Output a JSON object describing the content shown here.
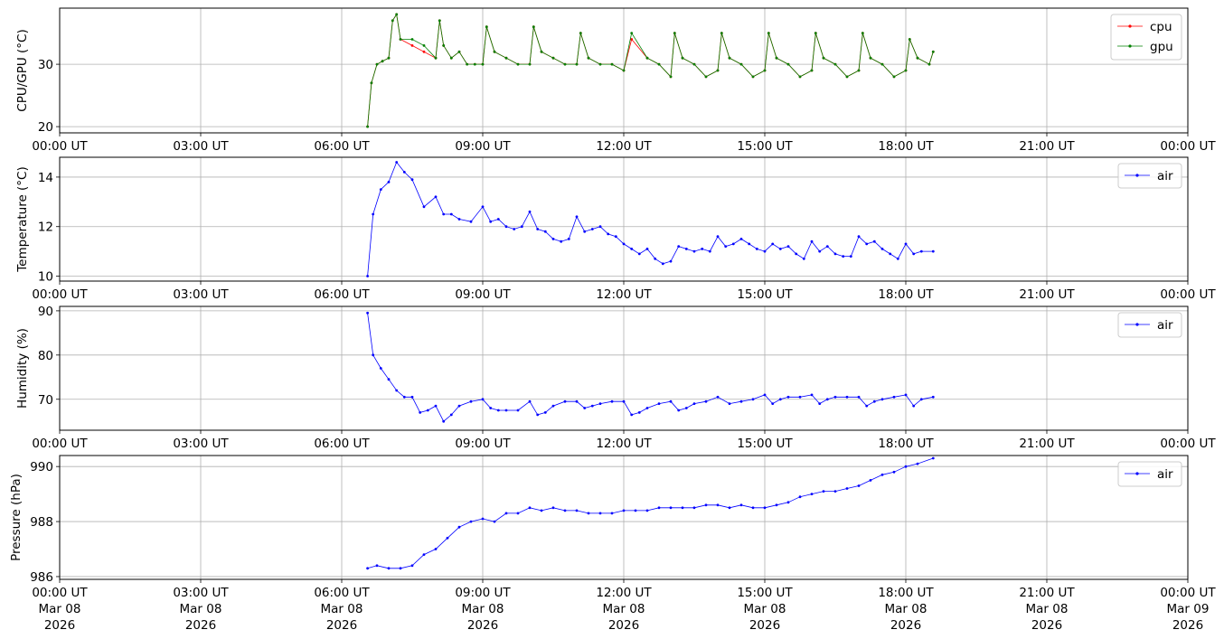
{
  "x_ticks": [
    {
      "time": "00:00 UT",
      "day": "Mar 08",
      "year": "2026"
    },
    {
      "time": "03:00 UT",
      "day": "Mar 08",
      "year": "2026"
    },
    {
      "time": "06:00 UT",
      "day": "Mar 08",
      "year": "2026"
    },
    {
      "time": "09:00 UT",
      "day": "Mar 08",
      "year": "2026"
    },
    {
      "time": "12:00 UT",
      "day": "Mar 08",
      "year": "2026"
    },
    {
      "time": "15:00 UT",
      "day": "Mar 08",
      "year": "2026"
    },
    {
      "time": "18:00 UT",
      "day": "Mar 08",
      "year": "2026"
    },
    {
      "time": "21:00 UT",
      "day": "Mar 08",
      "year": "2026"
    },
    {
      "time": "00:00 UT",
      "day": "Mar 09",
      "year": "2026"
    }
  ],
  "chart_data": [
    {
      "type": "line",
      "ylabel": "CPU/GPU (°C)",
      "xlim": [
        "2026-03-08T00:00Z",
        "2026-03-09T00:00Z"
      ],
      "ylim": [
        19,
        39
      ],
      "yticks": [
        20,
        30
      ],
      "grid": true,
      "legend": "top-right",
      "series": [
        {
          "name": "cpu",
          "color": "#ff0000",
          "x": [
            "06:33",
            "06:38",
            "06:45",
            "06:52",
            "07:00",
            "07:05",
            "07:10",
            "07:15",
            "07:30",
            "07:45",
            "08:00",
            "08:05",
            "08:10",
            "08:20",
            "08:30",
            "08:40",
            "08:50",
            "09:00",
            "09:05",
            "09:15",
            "09:30",
            "09:45",
            "10:00",
            "10:05",
            "10:15",
            "10:30",
            "10:45",
            "11:00",
            "11:05",
            "11:15",
            "11:30",
            "11:45",
            "12:00",
            "12:10",
            "12:30",
            "12:45",
            "13:00",
            "13:05",
            "13:15",
            "13:30",
            "13:45",
            "14:00",
            "14:05",
            "14:15",
            "14:30",
            "14:45",
            "15:00",
            "15:05",
            "15:15",
            "15:30",
            "15:45",
            "16:00",
            "16:05",
            "16:15",
            "16:30",
            "16:45",
            "17:00",
            "17:05",
            "17:15",
            "17:30",
            "17:45",
            "18:00",
            "18:05",
            "18:15",
            "18:30",
            "18:35"
          ],
          "values": [
            20,
            27,
            30,
            30.5,
            31,
            37,
            38,
            34,
            33,
            32,
            31,
            37,
            33,
            31,
            32,
            30,
            30,
            30,
            36,
            32,
            31,
            30,
            30,
            36,
            32,
            31,
            30,
            30,
            35,
            31,
            30,
            30,
            29,
            34,
            31,
            30,
            28,
            35,
            31,
            30,
            28,
            29,
            35,
            31,
            30,
            28,
            29,
            35,
            31,
            30,
            28,
            29,
            35,
            31,
            30,
            28,
            29,
            35,
            31,
            30,
            28,
            29,
            34,
            31,
            30,
            32
          ]
        },
        {
          "name": "gpu",
          "color": "#008000",
          "x": [
            "06:33",
            "06:38",
            "06:45",
            "06:52",
            "07:00",
            "07:05",
            "07:10",
            "07:15",
            "07:30",
            "07:45",
            "08:00",
            "08:05",
            "08:10",
            "08:20",
            "08:30",
            "08:40",
            "08:50",
            "09:00",
            "09:05",
            "09:15",
            "09:30",
            "09:45",
            "10:00",
            "10:05",
            "10:15",
            "10:30",
            "10:45",
            "11:00",
            "11:05",
            "11:15",
            "11:30",
            "11:45",
            "12:00",
            "12:10",
            "12:30",
            "12:45",
            "13:00",
            "13:05",
            "13:15",
            "13:30",
            "13:45",
            "14:00",
            "14:05",
            "14:15",
            "14:30",
            "14:45",
            "15:00",
            "15:05",
            "15:15",
            "15:30",
            "15:45",
            "16:00",
            "16:05",
            "16:15",
            "16:30",
            "16:45",
            "17:00",
            "17:05",
            "17:15",
            "17:30",
            "17:45",
            "18:00",
            "18:05",
            "18:15",
            "18:30",
            "18:35"
          ],
          "values": [
            20,
            27,
            30,
            30.5,
            31,
            37,
            38,
            34,
            34,
            33,
            31,
            37,
            33,
            31,
            32,
            30,
            30,
            30,
            36,
            32,
            31,
            30,
            30,
            36,
            32,
            31,
            30,
            30,
            35,
            31,
            30,
            30,
            29,
            35,
            31,
            30,
            28,
            35,
            31,
            30,
            28,
            29,
            35,
            31,
            30,
            28,
            29,
            35,
            31,
            30,
            28,
            29,
            35,
            31,
            30,
            28,
            29,
            35,
            31,
            30,
            28,
            29,
            34,
            31,
            30,
            32
          ]
        }
      ]
    },
    {
      "type": "line",
      "ylabel": "Temperature (°C)",
      "xlim": [
        "2026-03-08T00:00Z",
        "2026-03-09T00:00Z"
      ],
      "ylim": [
        9.8,
        14.8
      ],
      "yticks": [
        10,
        12,
        14
      ],
      "grid": true,
      "legend": "top-right",
      "series": [
        {
          "name": "air",
          "color": "#0000ff",
          "x": [
            "06:33",
            "06:40",
            "06:50",
            "07:00",
            "07:10",
            "07:20",
            "07:30",
            "07:45",
            "08:00",
            "08:10",
            "08:20",
            "08:30",
            "08:45",
            "09:00",
            "09:10",
            "09:20",
            "09:30",
            "09:40",
            "09:50",
            "10:00",
            "10:10",
            "10:20",
            "10:30",
            "10:40",
            "10:50",
            "11:00",
            "11:10",
            "11:20",
            "11:30",
            "11:40",
            "11:50",
            "12:00",
            "12:10",
            "12:20",
            "12:30",
            "12:40",
            "12:50",
            "13:00",
            "13:10",
            "13:20",
            "13:30",
            "13:40",
            "13:50",
            "14:00",
            "14:10",
            "14:20",
            "14:30",
            "14:40",
            "14:50",
            "15:00",
            "15:10",
            "15:20",
            "15:30",
            "15:40",
            "15:50",
            "16:00",
            "16:10",
            "16:20",
            "16:30",
            "16:40",
            "16:50",
            "17:00",
            "17:10",
            "17:20",
            "17:30",
            "17:40",
            "17:50",
            "18:00",
            "18:10",
            "18:20",
            "18:35"
          ],
          "values": [
            10,
            12.5,
            13.5,
            13.8,
            14.6,
            14.2,
            13.9,
            12.8,
            13.2,
            12.5,
            12.5,
            12.3,
            12.2,
            12.8,
            12.2,
            12.3,
            12,
            11.9,
            12,
            12.6,
            11.9,
            11.8,
            11.5,
            11.4,
            11.5,
            12.4,
            11.8,
            11.9,
            12,
            11.7,
            11.6,
            11.3,
            11.1,
            10.9,
            11.1,
            10.7,
            10.5,
            10.6,
            11.2,
            11.1,
            11,
            11.1,
            11,
            11.6,
            11.2,
            11.3,
            11.5,
            11.3,
            11.1,
            11,
            11.3,
            11.1,
            11.2,
            10.9,
            10.7,
            11.4,
            11,
            11.2,
            10.9,
            10.8,
            10.8,
            11.6,
            11.3,
            11.4,
            11.1,
            10.9,
            10.7,
            11.3,
            10.9,
            11,
            11
          ]
        }
      ]
    },
    {
      "type": "line",
      "ylabel": "Humidity (%)",
      "xlim": [
        "2026-03-08T00:00Z",
        "2026-03-09T00:00Z"
      ],
      "ylim": [
        63,
        91
      ],
      "yticks": [
        70,
        80,
        90
      ],
      "grid": true,
      "legend": "top-right",
      "series": [
        {
          "name": "air",
          "color": "#0000ff",
          "x": [
            "06:33",
            "06:40",
            "06:50",
            "07:00",
            "07:10",
            "07:20",
            "07:30",
            "07:40",
            "07:50",
            "08:00",
            "08:10",
            "08:20",
            "08:30",
            "08:45",
            "09:00",
            "09:10",
            "09:20",
            "09:30",
            "09:45",
            "10:00",
            "10:10",
            "10:20",
            "10:30",
            "10:45",
            "11:00",
            "11:10",
            "11:20",
            "11:30",
            "11:45",
            "12:00",
            "12:10",
            "12:20",
            "12:30",
            "12:45",
            "13:00",
            "13:10",
            "13:20",
            "13:30",
            "13:45",
            "14:00",
            "14:15",
            "14:30",
            "14:45",
            "15:00",
            "15:10",
            "15:20",
            "15:30",
            "15:45",
            "16:00",
            "16:10",
            "16:20",
            "16:30",
            "16:45",
            "17:00",
            "17:10",
            "17:20",
            "17:30",
            "17:45",
            "18:00",
            "18:10",
            "18:20",
            "18:35"
          ],
          "values": [
            89.5,
            80,
            77,
            74.5,
            72,
            70.5,
            70.5,
            67,
            67.5,
            68.5,
            65,
            66.5,
            68.5,
            69.5,
            70,
            68,
            67.5,
            67.5,
            67.5,
            69.5,
            66.5,
            67,
            68.5,
            69.5,
            69.5,
            68,
            68.5,
            69,
            69.5,
            69.5,
            66.5,
            67,
            68,
            69,
            69.5,
            67.5,
            68,
            69,
            69.5,
            70.5,
            69,
            69.5,
            70,
            71,
            69,
            70,
            70.5,
            70.5,
            71,
            69,
            70,
            70.5,
            70.5,
            70.5,
            68.5,
            69.5,
            70,
            70.5,
            71,
            68.5,
            70,
            70.5
          ]
        }
      ]
    },
    {
      "type": "line",
      "ylabel": "Pressure (hPa)",
      "xlim": [
        "2026-03-08T00:00Z",
        "2026-03-09T00:00Z"
      ],
      "ylim": [
        985.9,
        990.4
      ],
      "yticks": [
        986,
        988,
        990
      ],
      "grid": true,
      "legend": "top-right",
      "series": [
        {
          "name": "air",
          "color": "#0000ff",
          "x": [
            "06:33",
            "06:45",
            "07:00",
            "07:15",
            "07:30",
            "07:45",
            "08:00",
            "08:15",
            "08:30",
            "08:45",
            "09:00",
            "09:15",
            "09:30",
            "09:45",
            "10:00",
            "10:15",
            "10:30",
            "10:45",
            "11:00",
            "11:15",
            "11:30",
            "11:45",
            "12:00",
            "12:15",
            "12:30",
            "12:45",
            "13:00",
            "13:15",
            "13:30",
            "13:45",
            "14:00",
            "14:15",
            "14:30",
            "14:45",
            "15:00",
            "15:15",
            "15:30",
            "15:45",
            "16:00",
            "16:15",
            "16:30",
            "16:45",
            "17:00",
            "17:15",
            "17:30",
            "17:45",
            "18:00",
            "18:15",
            "18:35"
          ],
          "values": [
            986.3,
            986.4,
            986.3,
            986.3,
            986.4,
            986.8,
            987.0,
            987.4,
            987.8,
            988.0,
            988.1,
            988.0,
            988.3,
            988.3,
            988.5,
            988.4,
            988.5,
            988.4,
            988.4,
            988.3,
            988.3,
            988.3,
            988.4,
            988.4,
            988.4,
            988.5,
            988.5,
            988.5,
            988.5,
            988.6,
            988.6,
            988.5,
            988.6,
            988.5,
            988.5,
            988.6,
            988.7,
            988.9,
            989.0,
            989.1,
            989.1,
            989.2,
            989.3,
            989.5,
            989.7,
            989.8,
            990.0,
            990.1,
            990.3
          ]
        }
      ]
    }
  ]
}
